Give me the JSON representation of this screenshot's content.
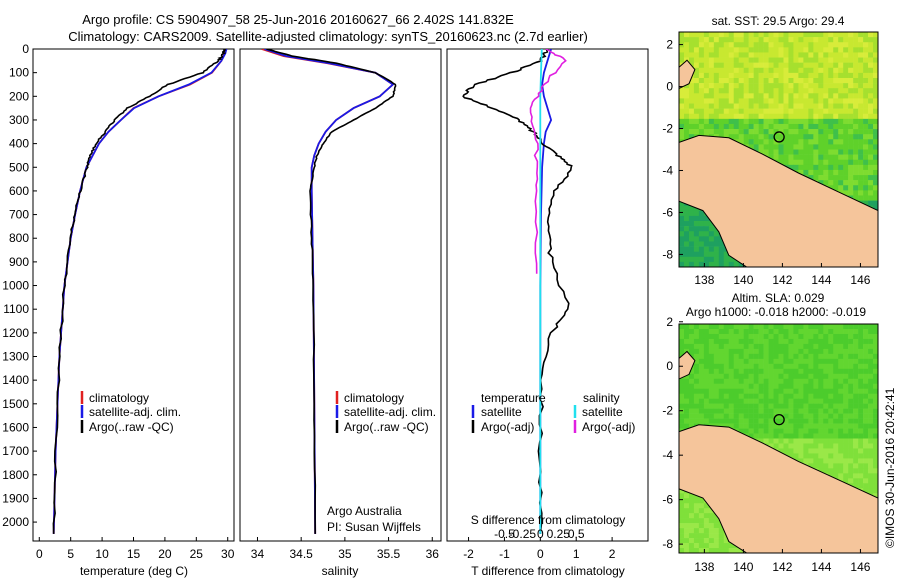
{
  "header": {
    "line1": "Argo profile: CS 5904907_58 25-Jun-2016 20160627_66 2.402S 141.832E",
    "line2": "Climatology: CARS2009. Satellite-adjusted climatology: synTS_20160623.nc (2.7d earlier)"
  },
  "colors": {
    "climatology": "#e02020",
    "satellite": "#1a1ae6",
    "argo": "#000000",
    "sat_salinity": "#20e0ee",
    "argo_salinity": "#e020e0",
    "land": "#f5c59b",
    "ocean_warm": "#8ee02a",
    "ocean_cool": "#1fb24a"
  },
  "panels": {
    "temperature": {
      "xlabel": "temperature (deg C)",
      "xticks": [
        "0",
        "5",
        "10",
        "15",
        "20",
        "25",
        "30"
      ],
      "legend": [
        "climatology",
        "satellite-adj. clim.",
        "Argo(..raw -QC)"
      ]
    },
    "salinity": {
      "xlabel": "salinity",
      "xticks": [
        "34",
        "34.5",
        "35",
        "35.5",
        "36"
      ],
      "legend": [
        "climatology",
        "satellite-adj. clim.",
        "Argo(..raw -QC)"
      ],
      "credit1": "Argo Australia",
      "credit2": "PI: Susan Wijffels"
    },
    "difference": {
      "xlabel": "T difference from climatology",
      "top_label": "S difference from climatology",
      "xticks": [
        "-2",
        "-1",
        "0",
        "1",
        "2"
      ],
      "sticks": [
        "-0.5",
        "-0.25",
        "0",
        "0.25",
        "0.5"
      ],
      "legend_t_title": "temperature",
      "legend_s_title": "salinity",
      "legend_t": [
        "satellite",
        "Argo(-adj)"
      ],
      "legend_s": [
        "satellite",
        "Argo(-adj)"
      ]
    },
    "depth_ticks": [
      "0",
      "100",
      "200",
      "300",
      "400",
      "500",
      "600",
      "700",
      "800",
      "900",
      "1000",
      "1100",
      "1200",
      "1300",
      "1400",
      "1500",
      "1600",
      "1700",
      "1800",
      "1900",
      "2000"
    ]
  },
  "maps": {
    "sst_title": "sat. SST: 29.5  Argo: 29.4",
    "sla_title1": "Altim. SLA: 0.029",
    "sla_title2": "Argo h1000: -0.018  h2000: -0.019",
    "yticks": [
      "2",
      "0",
      "-2",
      "-4",
      "-6",
      "-8"
    ],
    "xticks": [
      "138",
      "140",
      "142",
      "144",
      "146"
    ]
  },
  "stamp": "©IMOS 30-Jun-2016 20:42:41",
  "chart_data": [
    {
      "type": "line",
      "title": "",
      "xlabel": "temperature (deg C)",
      "ylabel": "",
      "xlim": [
        -1,
        31
      ],
      "ylim": [
        2080,
        0
      ],
      "series": [
        {
          "name": "climatology",
          "x": [
            29.6,
            29.5,
            29.0,
            27.5,
            24.0,
            19.0,
            15.0,
            13.0,
            11.0,
            9.5,
            8.5,
            7.5,
            6.5,
            5.7,
            5.0,
            4.0,
            3.2,
            2.6,
            2.3
          ],
          "y": [
            0,
            20,
            50,
            100,
            150,
            200,
            250,
            300,
            350,
            400,
            450,
            500,
            600,
            700,
            800,
            1000,
            1300,
            1700,
            2050
          ]
        },
        {
          "name": "satellite-adj. clim.",
          "x": [
            29.8,
            29.6,
            29.0,
            27.4,
            23.8,
            19.0,
            15.1,
            13.0,
            11.0,
            9.5,
            8.5,
            7.5,
            6.5,
            5.7,
            5.0,
            4.0,
            3.2,
            2.6,
            2.3
          ],
          "y": [
            0,
            20,
            50,
            100,
            150,
            200,
            250,
            300,
            350,
            400,
            450,
            500,
            600,
            700,
            800,
            1000,
            1300,
            1700,
            2050
          ]
        },
        {
          "name": "Argo(..raw -QC)",
          "x": [
            29.5,
            29.3,
            28.5,
            26.0,
            20.5,
            17.5,
            14.0,
            12.0,
            10.5,
            9.0,
            8.2,
            7.6,
            6.5,
            5.6,
            5.0,
            4.0,
            3.2,
            2.6,
            2.3
          ],
          "y": [
            0,
            20,
            50,
            100,
            150,
            200,
            250,
            300,
            350,
            400,
            450,
            500,
            600,
            700,
            800,
            1000,
            1300,
            1700,
            2050
          ]
        }
      ]
    },
    {
      "type": "line",
      "title": "",
      "xlabel": "salinity",
      "ylabel": "",
      "xlim": [
        33.8,
        36.1
      ],
      "ylim": [
        2080,
        0
      ],
      "series": [
        {
          "name": "climatology",
          "x": [
            34.05,
            34.3,
            34.8,
            35.35,
            35.55,
            35.4,
            35.1,
            34.9,
            34.78,
            34.7,
            34.65,
            34.62,
            34.62,
            34.63,
            34.64,
            34.65,
            34.66
          ],
          "y": [
            0,
            30,
            60,
            100,
            150,
            200,
            250,
            300,
            350,
            400,
            450,
            500,
            600,
            800,
            1000,
            1500,
            2050
          ]
        },
        {
          "name": "satellite-adj. clim.",
          "x": [
            34.08,
            34.33,
            34.82,
            35.35,
            35.55,
            35.4,
            35.1,
            34.9,
            34.78,
            34.7,
            34.65,
            34.62,
            34.62,
            34.63,
            34.64,
            34.65,
            34.66
          ],
          "y": [
            0,
            30,
            60,
            100,
            150,
            200,
            250,
            300,
            350,
            400,
            450,
            500,
            600,
            800,
            1000,
            1500,
            2050
          ]
        },
        {
          "name": "Argo(..raw -QC)",
          "x": [
            34.1,
            34.4,
            34.9,
            35.35,
            35.58,
            35.55,
            35.35,
            35.1,
            34.85,
            34.75,
            34.68,
            34.65,
            34.6,
            34.62,
            34.64,
            34.65,
            34.66
          ],
          "y": [
            0,
            30,
            60,
            100,
            150,
            200,
            250,
            300,
            350,
            400,
            450,
            500,
            600,
            800,
            1000,
            1500,
            2050
          ]
        }
      ]
    },
    {
      "type": "line",
      "title": "",
      "xlabel": "T difference from climatology",
      "ylabel": "",
      "xlim": [
        -2.6,
        3.0
      ],
      "ylim": [
        2080,
        0
      ],
      "series": [
        {
          "name": "temperature satellite",
          "x": [
            0.3,
            0.2,
            0.1,
            0.05,
            0.1,
            0.3,
            0.15,
            0.1,
            0.05,
            0.02,
            0.0,
            0.0,
            0.0,
            0.0
          ],
          "y": [
            0,
            50,
            100,
            150,
            200,
            300,
            350,
            400,
            500,
            700,
            1000,
            1300,
            1700,
            2050
          ]
        },
        {
          "name": "temperature Argo(-adj)",
          "x": [
            0.2,
            0.0,
            -0.8,
            -1.8,
            -2.2,
            -1.3,
            -0.6,
            -0.2,
            0.1,
            0.5,
            0.9,
            0.4,
            0.2,
            0.3,
            0.8,
            0.3,
            0.05,
            0.0,
            0.0
          ],
          "y": [
            0,
            50,
            100,
            150,
            200,
            250,
            300,
            350,
            400,
            450,
            500,
            600,
            750,
            900,
            1100,
            1200,
            1400,
            1700,
            2050
          ]
        },
        {
          "name": "salinity satellite",
          "x": [
            0.02,
            0.01,
            0.0,
            0.0,
            0.0,
            0.0,
            0.0
          ],
          "y": [
            0,
            100,
            200,
            400,
            800,
            1300,
            2050
          ]
        },
        {
          "name": "salinity Argo(-adj)",
          "x": [
            0.1,
            0.35,
            0.05,
            -0.15,
            -0.05,
            -0.05,
            -0.05
          ],
          "y": [
            0,
            50,
            150,
            250,
            400,
            600,
            950
          ]
        }
      ]
    }
  ]
}
